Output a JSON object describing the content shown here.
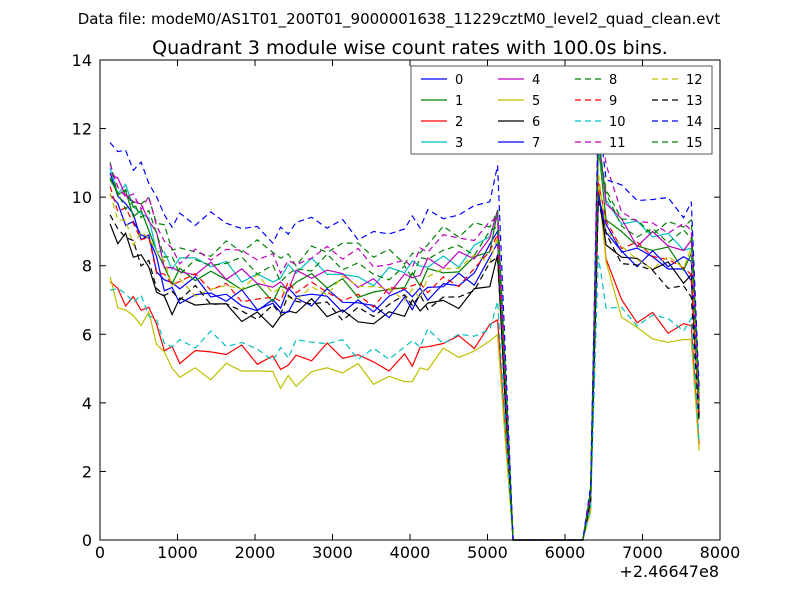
{
  "header": {
    "data_file": "Data file: modeM0/AS1T01_200T01_9000001638_11229cztM0_level2_quad_clean.evt"
  },
  "chart_data": {
    "type": "line",
    "title": "Quadrant 3 module wise count rates with 100.0s bins.",
    "xlabel": "",
    "ylabel": "",
    "xlim": [
      0,
      8000
    ],
    "ylim": [
      0,
      14
    ],
    "x_ticks": [
      0,
      1000,
      2000,
      3000,
      4000,
      5000,
      6000,
      7000,
      8000
    ],
    "x_tick_labels": [
      "0",
      "1000",
      "2000",
      "3000",
      "4000",
      "5000",
      "6000",
      "7000",
      "8000"
    ],
    "y_ticks": [
      0,
      2,
      4,
      6,
      8,
      10,
      12,
      14
    ],
    "y_tick_labels": [
      "0",
      "2",
      "4",
      "6",
      "8",
      "10",
      "12",
      "14"
    ],
    "x_offset_label": "+2.46647e8",
    "grid": false,
    "legend_position": "top-right",
    "legend_columns": 4,
    "profile_x": [
      130,
      230,
      330,
      430,
      530,
      630,
      730,
      830,
      930,
      1030,
      1230,
      1430,
      1630,
      1830,
      2030,
      2230,
      2330,
      2430,
      2530,
      2730,
      2930,
      3130,
      3330,
      3530,
      3730,
      3930,
      4030,
      4130,
      4230,
      4430,
      4630,
      4830,
      5030,
      5130,
      5230,
      5330,
      6230,
      6330,
      6430,
      6530,
      6730,
      6930,
      7130,
      7330,
      7530,
      7630,
      7730
    ],
    "profile_shape": [
      1.0,
      0.95,
      0.92,
      0.88,
      0.86,
      0.85,
      0.8,
      0.76,
      0.74,
      0.73,
      0.72,
      0.71,
      0.7,
      0.7,
      0.7,
      0.69,
      0.67,
      0.64,
      0.7,
      0.7,
      0.7,
      0.7,
      0.7,
      0.7,
      0.7,
      0.71,
      0.7,
      0.6,
      0.72,
      0.74,
      0.76,
      0.78,
      0.82,
      0.87,
      0.42,
      0.0,
      0.0,
      0.12,
      1.0,
      0.86,
      0.8,
      0.76,
      0.75,
      0.73,
      0.72,
      0.74,
      0.34
    ],
    "series": [
      {
        "name": "0",
        "color": "#0000ff",
        "dash": "solid",
        "base": 10.6,
        "mid": 7.0,
        "peak": 10.4,
        "end": 7.8,
        "phase": 0.3
      },
      {
        "name": "1",
        "color": "#008000",
        "dash": "solid",
        "base": 10.8,
        "mid": 7.4,
        "peak": 11.5,
        "end": 8.0,
        "phase": 1.1
      },
      {
        "name": "2",
        "color": "#ff0000",
        "dash": "solid",
        "base": 7.8,
        "mid": 5.3,
        "peak": 10.6,
        "end": 5.9,
        "phase": 2.0
      },
      {
        "name": "3",
        "color": "#00bfbf",
        "dash": "solid",
        "base": 10.8,
        "mid": 7.8,
        "peak": 11.6,
        "end": 8.5,
        "phase": 0.7
      },
      {
        "name": "4",
        "color": "#bf00bf",
        "dash": "solid",
        "base": 11.1,
        "mid": 7.6,
        "peak": 12.0,
        "end": 8.3,
        "phase": 1.6
      },
      {
        "name": "5",
        "color": "#bfbf00",
        "dash": "solid",
        "base": 7.6,
        "mid": 4.8,
        "peak": 10.5,
        "end": 5.5,
        "phase": 2.5
      },
      {
        "name": "6",
        "color": "#000000",
        "dash": "solid",
        "base": 9.3,
        "mid": 6.6,
        "peak": 10.2,
        "end": 7.6,
        "phase": 0.9
      },
      {
        "name": "7",
        "color": "#0000ff",
        "dash": "solid",
        "base": 10.4,
        "mid": 6.9,
        "peak": 10.3,
        "end": 7.9,
        "phase": 1.9
      },
      {
        "name": "8",
        "color": "#008000",
        "dash": "dashed",
        "base": 10.9,
        "mid": 8.4,
        "peak": 11.4,
        "end": 9.0,
        "phase": 2.8
      },
      {
        "name": "9",
        "color": "#ff0000",
        "dash": "dashed",
        "base": 10.2,
        "mid": 7.2,
        "peak": 10.7,
        "end": 7.9,
        "phase": 0.5
      },
      {
        "name": "10",
        "color": "#00bfbf",
        "dash": "dashed",
        "base": 7.7,
        "mid": 5.6,
        "peak": 8.3,
        "end": 6.1,
        "phase": 1.4
      },
      {
        "name": "11",
        "color": "#bf00bf",
        "dash": "dashed",
        "base": 11.0,
        "mid": 8.2,
        "peak": 12.9,
        "end": 8.8,
        "phase": 2.3
      },
      {
        "name": "12",
        "color": "#bfbf00",
        "dash": "dashed",
        "base": 10.1,
        "mid": 7.3,
        "peak": 10.3,
        "end": 8.0,
        "phase": 3.1
      },
      {
        "name": "13",
        "color": "#000000",
        "dash": "dashed",
        "base": 9.4,
        "mid": 6.8,
        "peak": 10.3,
        "end": 7.3,
        "phase": 0.2
      },
      {
        "name": "14",
        "color": "#0000ff",
        "dash": "dashed",
        "base": 11.9,
        "mid": 9.1,
        "peak": 12.4,
        "end": 9.5,
        "phase": 1.2
      },
      {
        "name": "15",
        "color": "#008000",
        "dash": "dashed",
        "base": 10.7,
        "mid": 7.9,
        "peak": 11.6,
        "end": 8.6,
        "phase": 2.1
      }
    ]
  }
}
